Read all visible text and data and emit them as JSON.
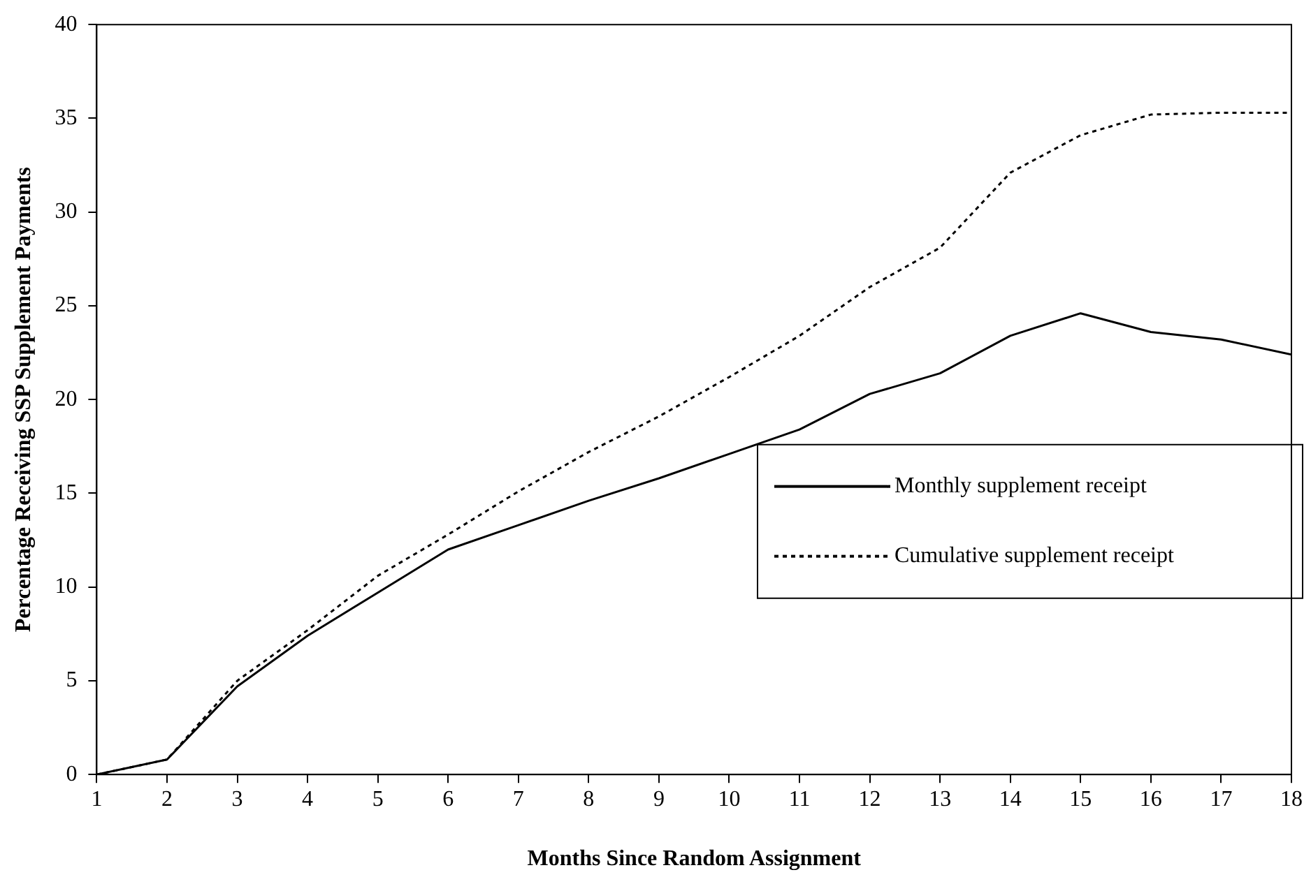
{
  "chart_data": {
    "type": "line",
    "xlabel": "Months Since Random Assignment",
    "ylabel": "Percentage Receiving SSP Supplement Payments",
    "x": [
      1,
      2,
      3,
      4,
      5,
      6,
      7,
      8,
      9,
      10,
      11,
      12,
      13,
      14,
      15,
      16,
      17,
      18
    ],
    "xlim": [
      1,
      18
    ],
    "xticks": [
      1,
      2,
      3,
      4,
      5,
      6,
      7,
      8,
      9,
      10,
      11,
      12,
      13,
      14,
      15,
      16,
      17,
      18
    ],
    "ylim": [
      0,
      40
    ],
    "yticks": [
      0,
      5,
      10,
      15,
      20,
      25,
      30,
      35,
      40
    ],
    "grid": false,
    "legend": "right",
    "marker": "none",
    "series": [
      {
        "name": "Monthly supplement receipt",
        "color": "#000000",
        "line_style": "solid",
        "values": [
          0,
          0.8,
          4.7,
          7.4,
          9.7,
          12.0,
          13.3,
          14.6,
          15.8,
          17.1,
          18.4,
          20.3,
          21.4,
          23.4,
          24.6,
          23.6,
          23.2,
          22.4
        ]
      },
      {
        "name": "Cumulative supplement receipt",
        "color": "#000000",
        "line_style": "dotted",
        "values": [
          0,
          0.8,
          5.0,
          7.7,
          10.6,
          12.8,
          15.1,
          17.2,
          19.1,
          21.2,
          23.4,
          26.0,
          28.1,
          32.1,
          34.1,
          35.2,
          35.3,
          35.3
        ]
      }
    ]
  }
}
